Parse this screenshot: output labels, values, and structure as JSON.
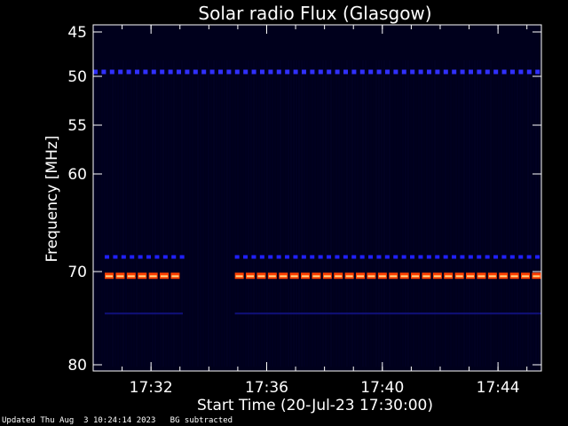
{
  "footer": {
    "updated": "Updated Thu Aug  3 10:24:14 2023",
    "bg_note": "BG subtracted"
  },
  "chart_data": {
    "type": "heatmap",
    "title": "Solar radio Flux (Glasgow)",
    "xlabel": "Start Time (20-Jul-23 17:30:00)",
    "ylabel": "Frequency [MHz]",
    "x_unit": "minutes after 17:30:00",
    "xlim": [
      0.0,
      15.5
    ],
    "x_ticks": [
      {
        "value": 2,
        "label": "17:32"
      },
      {
        "value": 6,
        "label": "17:36"
      },
      {
        "value": 10,
        "label": "17:40"
      },
      {
        "value": 14,
        "label": "17:44"
      }
    ],
    "y_ticks": [
      {
        "value": 45,
        "label": "45"
      },
      {
        "value": 50,
        "label": "50"
      },
      {
        "value": 55,
        "label": "55"
      },
      {
        "value": 60,
        "label": "60"
      },
      {
        "value": 70,
        "label": "70"
      },
      {
        "value": 80,
        "label": "80"
      }
    ],
    "y_axis_reversed": true,
    "background_color": "#00001c",
    "frame_color": "#ffffff",
    "features": [
      {
        "name": "band-49.5",
        "frequency": 49.5,
        "kind": "dashed",
        "color": "#3030ff",
        "segments": [
          [
            0.0,
            15.5
          ]
        ]
      },
      {
        "name": "band-68.5",
        "frequency": 68.5,
        "kind": "dashed",
        "color": "#2020ff",
        "segments": [
          [
            0.4,
            3.1
          ],
          [
            4.9,
            15.5
          ]
        ]
      },
      {
        "name": "band-70.5",
        "frequency": 70.5,
        "kind": "hot",
        "color": "#ff4000",
        "core_color": "#ffd080",
        "segments": [
          [
            0.4,
            3.1
          ],
          [
            4.9,
            15.5
          ]
        ]
      },
      {
        "name": "band-74.5",
        "frequency": 74.5,
        "kind": "faint",
        "color": "#10107a",
        "segments": [
          [
            0.4,
            3.1
          ],
          [
            4.9,
            15.5
          ]
        ]
      }
    ],
    "grid": false,
    "legend": "none"
  }
}
